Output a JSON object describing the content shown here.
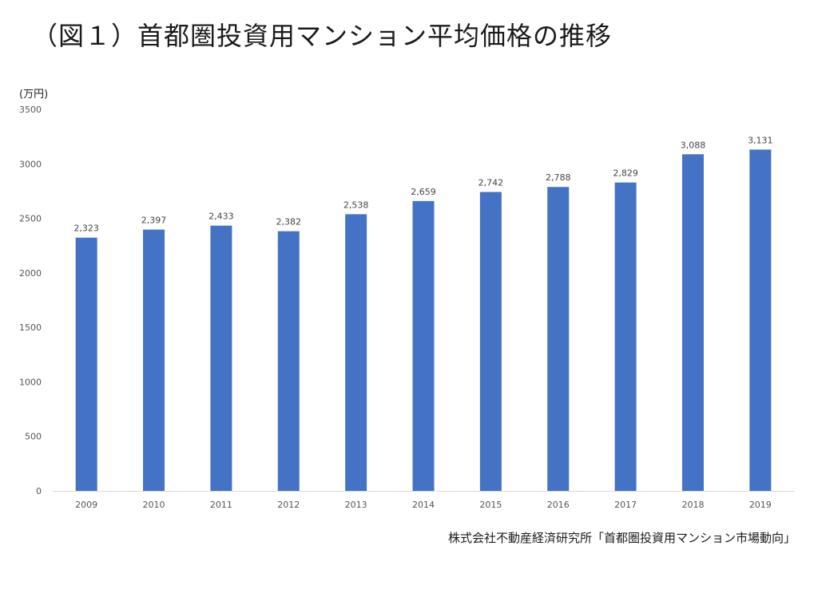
{
  "title": "（図１）首都圏投資用マンション平均価格の推移",
  "unit": "(万円)",
  "source": "株式会社不動産経済研究所「首都圏投資用マンション市場動向」",
  "chart_data": {
    "type": "bar",
    "categories": [
      "2009",
      "2010",
      "2011",
      "2012",
      "2013",
      "2014",
      "2015",
      "2016",
      "2017",
      "2018",
      "2019"
    ],
    "values": [
      2323,
      2397,
      2433,
      2382,
      2538,
      2659,
      2742,
      2788,
      2829,
      3088,
      3131
    ],
    "value_labels": [
      "2,323",
      "2,397",
      "2,433",
      "2,382",
      "2,538",
      "2,659",
      "2,742",
      "2,788",
      "2,829",
      "3,088",
      "3,131"
    ],
    "yticks": [
      "0",
      "500",
      "1000",
      "1500",
      "2000",
      "2500",
      "3000",
      "3500"
    ],
    "ylim": [
      0,
      3500
    ],
    "bar_color": "#4472C4",
    "grid": false
  }
}
